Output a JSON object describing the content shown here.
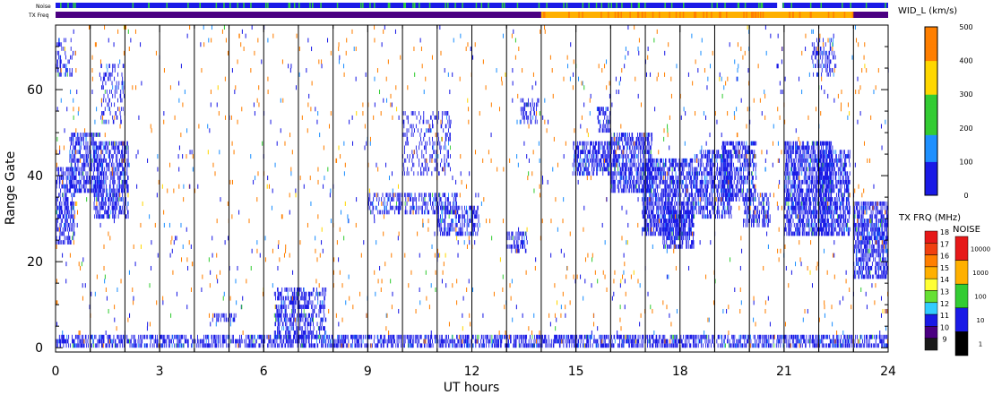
{
  "chart_data": {
    "type": "heatmap",
    "title": "",
    "xlabel": "UT hours",
    "ylabel": "Range Gate",
    "xlim": [
      0,
      24
    ],
    "ylim": [
      -1,
      75
    ],
    "x_ticks": [
      "0",
      "3",
      "6",
      "9",
      "12",
      "15",
      "18",
      "21",
      "24"
    ],
    "x_tick_values": [
      0,
      3,
      6,
      9,
      12,
      15,
      18,
      21,
      24
    ],
    "y_ticks": [
      "0",
      "20",
      "40",
      "60"
    ],
    "y_tick_values": [
      0,
      20,
      40,
      60
    ],
    "scan_boundaries_ut": [
      1,
      2,
      3,
      4,
      5,
      6,
      7,
      8,
      9,
      10,
      11,
      12,
      13,
      14,
      15,
      16,
      17,
      18,
      19,
      20,
      21,
      22,
      23
    ],
    "strip_labels": {
      "noise": "Noise",
      "freq": "TX Freq"
    },
    "noise_strip": {
      "base_color": "#1a1ae6",
      "speckle_color": "#2ecc40",
      "gap_ut": [
        20.8,
        20.95
      ]
    },
    "freq_strip": {
      "segments": [
        {
          "ut": [
            0,
            14
          ],
          "mhz": 10
        },
        {
          "ut": [
            14,
            23
          ],
          "mhz": 14.5
        },
        {
          "ut": [
            23,
            24
          ],
          "mhz": 10
        }
      ]
    },
    "colorbar_width": {
      "title": "WID_L (km/s)",
      "ticks": [
        "0",
        "100",
        "200",
        "300",
        "400",
        "500"
      ],
      "tick_values": [
        0,
        100,
        200,
        300,
        400,
        500
      ],
      "range": [
        0,
        500
      ]
    },
    "colorbar_freq": {
      "title": "TX FRQ (MHz)",
      "levels": [
        {
          "label": "18",
          "color": "#e61919"
        },
        {
          "label": "17",
          "color": "#f04010"
        },
        {
          "label": "16",
          "color": "#ff7f00"
        },
        {
          "label": "15",
          "color": "#ffb000"
        },
        {
          "label": "14",
          "color": "#ffff33"
        },
        {
          "label": "13",
          "color": "#66e033"
        },
        {
          "label": "12",
          "color": "#33ccff"
        },
        {
          "label": "11",
          "color": "#1a1ae6"
        },
        {
          "label": "10",
          "color": "#4b0082"
        },
        {
          "label": "9",
          "color": "#1a1a1a"
        }
      ]
    },
    "colorbar_noise": {
      "title": "NOISE",
      "levels": [
        {
          "label": "10000",
          "color": "#e61919"
        },
        {
          "label": "1000",
          "color": "#ffb000"
        },
        {
          "label": "100",
          "color": "#33cc33"
        },
        {
          "label": "10",
          "color": "#1a1ae6"
        },
        {
          "label": "1",
          "color": "#000000"
        }
      ]
    },
    "echo_regions": [
      {
        "ut": [
          0,
          0.55
        ],
        "gate": [
          24,
          42
        ],
        "density": 0.8
      },
      {
        "ut": [
          0.4,
          1.3
        ],
        "gate": [
          36,
          50
        ],
        "density": 0.75
      },
      {
        "ut": [
          1.1,
          2.1
        ],
        "gate": [
          30,
          48
        ],
        "density": 0.75
      },
      {
        "ut": [
          1.3,
          2.0
        ],
        "gate": [
          52,
          66
        ],
        "density": 0.3
      },
      {
        "ut": [
          0.0,
          0.5
        ],
        "gate": [
          63,
          72
        ],
        "density": 0.4
      },
      {
        "ut": [
          6.3,
          7.8
        ],
        "gate": [
          2,
          14
        ],
        "density": 0.65
      },
      {
        "ut": [
          4.5,
          5.2
        ],
        "gate": [
          6,
          8
        ],
        "density": 0.6
      },
      {
        "ut": [
          9.0,
          11.6
        ],
        "gate": [
          31,
          36
        ],
        "density": 0.55
      },
      {
        "ut": [
          11.0,
          12.2
        ],
        "gate": [
          26,
          33
        ],
        "density": 0.7
      },
      {
        "ut": [
          10.0,
          11.4
        ],
        "gate": [
          40,
          55
        ],
        "density": 0.3
      },
      {
        "ut": [
          13.0,
          13.6
        ],
        "gate": [
          22,
          27
        ],
        "density": 0.7
      },
      {
        "ut": [
          13.4,
          13.9
        ],
        "gate": [
          52,
          58
        ],
        "density": 0.45
      },
      {
        "ut": [
          14.9,
          16.0
        ],
        "gate": [
          40,
          48
        ],
        "density": 0.85
      },
      {
        "ut": [
          15.6,
          16.0
        ],
        "gate": [
          50,
          56
        ],
        "density": 0.7
      },
      {
        "ut": [
          16.0,
          17.2
        ],
        "gate": [
          36,
          50
        ],
        "density": 0.8
      },
      {
        "ut": [
          16.9,
          18.4
        ],
        "gate": [
          26,
          44
        ],
        "density": 0.85
      },
      {
        "ut": [
          17.5,
          18.4
        ],
        "gate": [
          23,
          32
        ],
        "density": 0.85
      },
      {
        "ut": [
          18.4,
          19.5
        ],
        "gate": [
          30,
          46
        ],
        "density": 0.8
      },
      {
        "ut": [
          19.2,
          20.2
        ],
        "gate": [
          34,
          48
        ],
        "density": 0.75
      },
      {
        "ut": [
          19.8,
          20.6
        ],
        "gate": [
          28,
          36
        ],
        "density": 0.7
      },
      {
        "ut": [
          21.0,
          22.4
        ],
        "gate": [
          26,
          48
        ],
        "density": 0.85
      },
      {
        "ut": [
          22.0,
          22.9
        ],
        "gate": [
          26,
          46
        ],
        "density": 0.8
      },
      {
        "ut": [
          21.8,
          22.5
        ],
        "gate": [
          63,
          72
        ],
        "density": 0.35
      },
      {
        "ut": [
          23.0,
          24.0
        ],
        "gate": [
          16,
          34
        ],
        "density": 0.85
      },
      {
        "ut": [
          0,
          24
        ],
        "gate": [
          0,
          3
        ],
        "density": 0.75
      }
    ]
  }
}
